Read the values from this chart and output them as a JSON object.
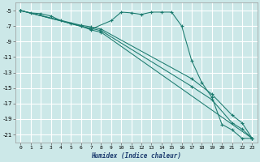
{
  "xlabel": "Humidex (Indice chaleur)",
  "bg_color": "#cce8e8",
  "grid_color": "#ffffff",
  "line_color": "#1a7a6e",
  "xlim": [
    -0.5,
    23.5
  ],
  "ylim": [
    -22.0,
    -4.0
  ],
  "yticks": [
    -5,
    -7,
    -9,
    -11,
    -13,
    -15,
    -17,
    -19,
    -21
  ],
  "xticks": [
    0,
    1,
    2,
    3,
    4,
    5,
    6,
    7,
    8,
    9,
    10,
    11,
    12,
    13,
    14,
    15,
    16,
    17,
    18,
    19,
    20,
    21,
    22,
    23
  ],
  "lines": [
    {
      "x": [
        0,
        1,
        2,
        3,
        4,
        5,
        7,
        9,
        10,
        11,
        12,
        13,
        14,
        15,
        16,
        17,
        18,
        19,
        20,
        21,
        22,
        23
      ],
      "y": [
        -5.0,
        -5.3,
        -5.4,
        -5.7,
        -6.3,
        -6.7,
        -7.4,
        -6.3,
        -5.2,
        -5.3,
        -5.5,
        -5.2,
        -5.2,
        -5.2,
        -7.0,
        -11.5,
        -14.3,
        -16.2,
        -19.7,
        -20.4,
        -21.5,
        -21.5
      ]
    },
    {
      "x": [
        0,
        6,
        7,
        8,
        23
      ],
      "y": [
        -5.0,
        -7.0,
        -7.5,
        -7.8,
        -21.5
      ]
    },
    {
      "x": [
        0,
        6,
        7,
        8,
        17,
        19,
        21,
        22,
        23
      ],
      "y": [
        -5.0,
        -7.0,
        -7.3,
        -7.6,
        -14.8,
        -16.5,
        -19.5,
        -20.3,
        -21.5
      ]
    },
    {
      "x": [
        0,
        6,
        7,
        8,
        17,
        19,
        21,
        22,
        23
      ],
      "y": [
        -5.0,
        -6.9,
        -7.1,
        -7.4,
        -13.8,
        -15.8,
        -18.5,
        -19.5,
        -21.5
      ]
    }
  ]
}
